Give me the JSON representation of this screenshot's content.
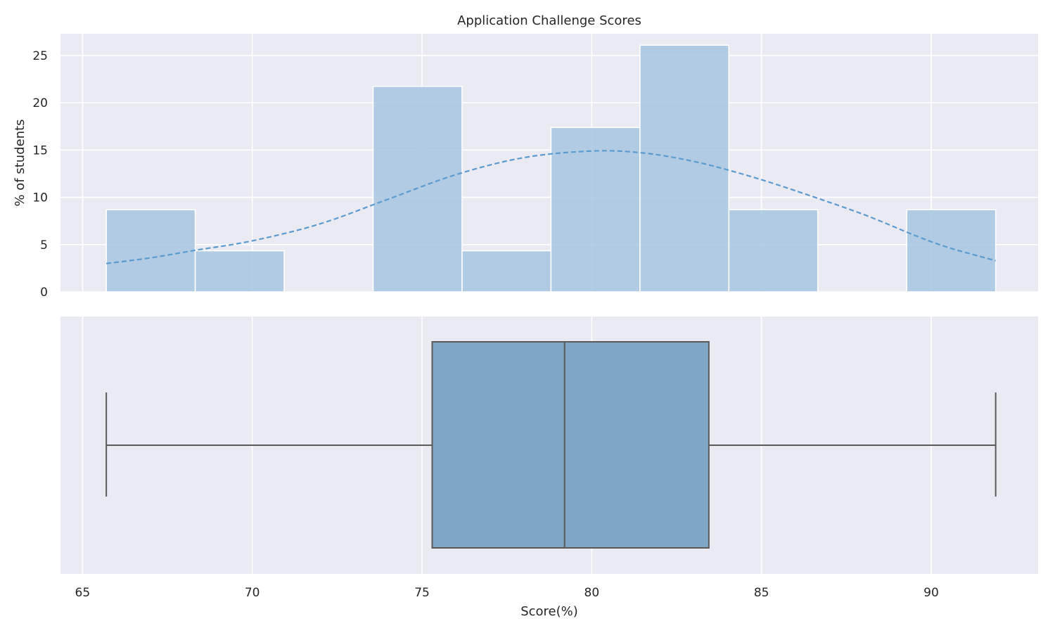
{
  "chart_data": [
    {
      "type": "histogram",
      "title": "Application Challenge Scores",
      "xlabel": "",
      "ylabel": "% of students",
      "xlim": [
        64.35,
        93.15
      ],
      "ylim": [
        0,
        27.3
      ],
      "yticks": [
        0,
        5,
        10,
        15,
        20,
        25
      ],
      "bin_edges": [
        65.7,
        68.32,
        70.94,
        73.56,
        76.18,
        78.8,
        81.42,
        84.04,
        86.66,
        89.28,
        91.9
      ],
      "values": [
        8.7,
        4.35,
        0,
        21.74,
        4.35,
        17.39,
        26.09,
        8.7,
        0,
        8.7
      ],
      "kde": {
        "style": "dashed",
        "x": [
          65.7,
          67,
          68.32,
          70,
          72,
          74,
          76,
          78,
          80,
          81.5,
          83,
          84.5,
          86,
          88,
          89.5,
          90.5,
          91.9
        ],
        "y": [
          3.0,
          3.6,
          4.4,
          5.4,
          7.2,
          9.8,
          12.4,
          14.2,
          14.9,
          14.7,
          13.8,
          12.4,
          10.7,
          8.2,
          6.0,
          4.7,
          3.3
        ]
      },
      "colors": {
        "bar": "#a6c5e0",
        "bar_edge": "#ffffff",
        "kde": "#5b9bd0"
      }
    },
    {
      "type": "boxplot",
      "xlabel": "Score(%)",
      "xticks": [
        65,
        70,
        75,
        80,
        85,
        90
      ],
      "xlim": [
        64.35,
        93.15
      ],
      "min": 65.7,
      "q1": 75.3,
      "median": 79.2,
      "q3": 83.45,
      "max": 91.9,
      "colors": {
        "box": "#7fa7c5",
        "line": "#5a5a5a"
      }
    }
  ]
}
